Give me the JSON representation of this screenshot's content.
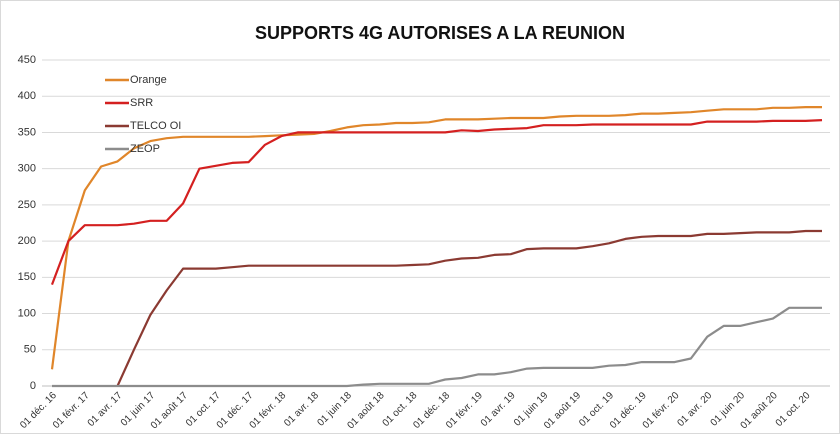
{
  "chart_data": {
    "type": "line",
    "title": "SUPPORTS 4G AUTORISES A LA REUNION",
    "categories": [
      "01 déc. 16",
      null,
      "01 févr. 17",
      null,
      "01 avr. 17",
      null,
      "01 juin 17",
      null,
      "01 août 17",
      null,
      "01 oct. 17",
      null,
      "01 déc. 17",
      null,
      "01 févr. 18",
      null,
      "01 avr. 18",
      null,
      "01 juin 18",
      null,
      "01 août 18",
      null,
      "01 oct. 18",
      null,
      "01 déc. 18",
      null,
      "01 févr. 19",
      null,
      "01 avr. 19",
      null,
      "01 juin 19",
      null,
      "01 août 19",
      null,
      "01 oct. 19",
      null,
      "01 déc. 19",
      null,
      "01 févr. 20",
      null,
      "01 avr. 20",
      null,
      "01 juin 20",
      null,
      "01 août 20",
      null,
      "01 oct. 20",
      null
    ],
    "series": [
      {
        "name": "Orange",
        "color": "#e0862a",
        "values": [
          23,
          200,
          270,
          303,
          310,
          328,
          338,
          342,
          344,
          344,
          344,
          344,
          344,
          345,
          346,
          347,
          348,
          352,
          357,
          360,
          361,
          363,
          363,
          364,
          368,
          368,
          368,
          369,
          370,
          370,
          370,
          372,
          373,
          373,
          373,
          374,
          376,
          376,
          377,
          378,
          380,
          382,
          382,
          382,
          384,
          384,
          385,
          385
        ]
      },
      {
        "name": "SRR",
        "color": "#d42020",
        "values": [
          140,
          200,
          222,
          222,
          222,
          224,
          228,
          228,
          252,
          300,
          304,
          308,
          309,
          333,
          345,
          350,
          350,
          350,
          350,
          350,
          350,
          350,
          350,
          350,
          350,
          353,
          352,
          354,
          355,
          356,
          360,
          360,
          360,
          361,
          361,
          361,
          361,
          361,
          361,
          361,
          365,
          365,
          365,
          365,
          366,
          366,
          366,
          367
        ]
      },
      {
        "name": "TELCO OI",
        "color": "#8b3a32",
        "values": [
          null,
          null,
          null,
          null,
          0,
          50,
          98,
          132,
          162,
          162,
          162,
          164,
          166,
          166,
          166,
          166,
          166,
          166,
          166,
          166,
          166,
          166,
          167,
          168,
          173,
          176,
          177,
          181,
          182,
          189,
          190,
          190,
          190,
          193,
          197,
          203,
          206,
          207,
          207,
          207,
          210,
          210,
          211,
          212,
          212,
          212,
          214,
          214
        ]
      },
      {
        "name": "ZEOP",
        "color": "#8c8c8c",
        "values": [
          0,
          0,
          0,
          0,
          0,
          0,
          0,
          0,
          0,
          0,
          0,
          0,
          0,
          0,
          0,
          0,
          0,
          0,
          0,
          2,
          3,
          3,
          3,
          3,
          9,
          11,
          16,
          16,
          19,
          24,
          25,
          25,
          25,
          25,
          28,
          29,
          33,
          33,
          33,
          38,
          68,
          83,
          83,
          88,
          93,
          108,
          108,
          108
        ]
      }
    ],
    "ylim": [
      0,
      450
    ],
    "yticks": [
      0,
      50,
      100,
      150,
      200,
      250,
      300,
      350,
      400,
      450
    ],
    "grid": true,
    "legend": "top-left"
  }
}
